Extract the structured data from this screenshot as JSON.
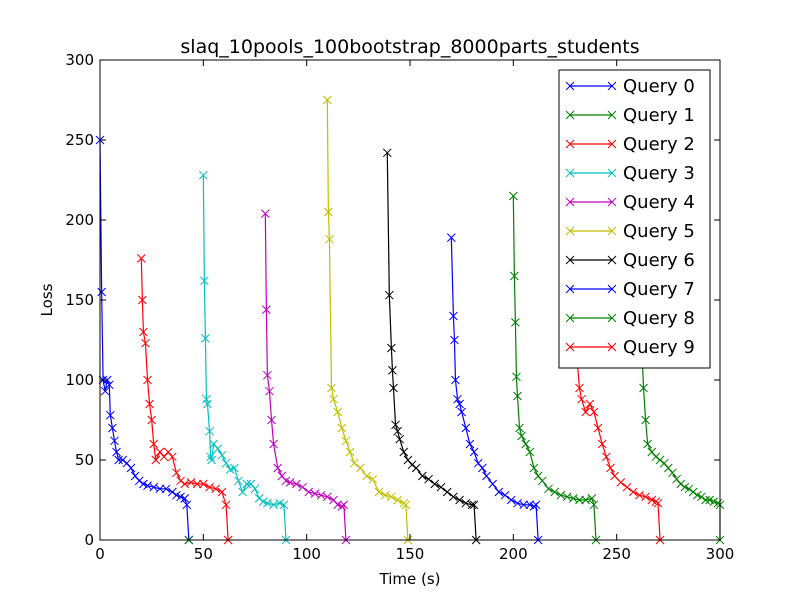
{
  "chart_data": {
    "type": "line",
    "title": "slaq_10pools_100bootstrap_8000parts_students",
    "xlabel": "Time (s)",
    "ylabel": "Loss",
    "xlim": [
      0,
      300
    ],
    "ylim": [
      0,
      300
    ],
    "xticks": [
      "0",
      "50",
      "100",
      "150",
      "200",
      "250",
      "300"
    ],
    "yticks": [
      "0",
      "50",
      "100",
      "150",
      "200",
      "250",
      "300"
    ],
    "grid": false,
    "legend_position": "top-right",
    "marker": "x",
    "series": [
      {
        "name": "Query 0",
        "color": "#0000ff",
        "points": [
          [
            0,
            250
          ],
          [
            0.8,
            155
          ],
          [
            1.5,
            100
          ],
          [
            2.5,
            93
          ],
          [
            3.5,
            100
          ],
          [
            4.5,
            97
          ],
          [
            5,
            78
          ],
          [
            6,
            70
          ],
          [
            7,
            62
          ],
          [
            8,
            55
          ],
          [
            9,
            50
          ],
          [
            11,
            50
          ],
          [
            13,
            48
          ],
          [
            15,
            45
          ],
          [
            17,
            40
          ],
          [
            19,
            37
          ],
          [
            21,
            35
          ],
          [
            23,
            34
          ],
          [
            26,
            33
          ],
          [
            29,
            32
          ],
          [
            32,
            32
          ],
          [
            35,
            30
          ],
          [
            37,
            28
          ],
          [
            39,
            27
          ],
          [
            41,
            26
          ],
          [
            42,
            22
          ],
          [
            43,
            0
          ]
        ]
      },
      {
        "name": "Query 1",
        "color": "#008000",
        "points": [
          [
            43,
            0
          ]
        ]
      },
      {
        "name": "Query 2",
        "color": "#ff0000",
        "points": [
          [
            20,
            176
          ],
          [
            20.5,
            150
          ],
          [
            21,
            130
          ],
          [
            22,
            123
          ],
          [
            23,
            100
          ],
          [
            24,
            85
          ],
          [
            25,
            75
          ],
          [
            26,
            60
          ],
          [
            27,
            50
          ],
          [
            29,
            55
          ],
          [
            31,
            52
          ],
          [
            33,
            55
          ],
          [
            35,
            52
          ],
          [
            37,
            42
          ],
          [
            39,
            37
          ],
          [
            41,
            35
          ],
          [
            44,
            36
          ],
          [
            47,
            35
          ],
          [
            50,
            35
          ],
          [
            53,
            33
          ],
          [
            56,
            32
          ],
          [
            59,
            30
          ],
          [
            61,
            22
          ],
          [
            62,
            0
          ]
        ]
      },
      {
        "name": "Query 3",
        "color": "#00bfbf",
        "points": [
          [
            50,
            228
          ],
          [
            50.5,
            162
          ],
          [
            51,
            126
          ],
          [
            51.5,
            88
          ],
          [
            52,
            85
          ],
          [
            53,
            68
          ],
          [
            53.5,
            52
          ],
          [
            54,
            50
          ],
          [
            55,
            60
          ],
          [
            57,
            57
          ],
          [
            59,
            53
          ],
          [
            61,
            48
          ],
          [
            63,
            44
          ],
          [
            65,
            45
          ],
          [
            67,
            37
          ],
          [
            69,
            30
          ],
          [
            71,
            35
          ],
          [
            73,
            35
          ],
          [
            75,
            32
          ],
          [
            77,
            26
          ],
          [
            79,
            24
          ],
          [
            81,
            23
          ],
          [
            84,
            22
          ],
          [
            87,
            23
          ],
          [
            89,
            22
          ],
          [
            90,
            0
          ]
        ]
      },
      {
        "name": "Query 4",
        "color": "#bf00bf",
        "points": [
          [
            80,
            204
          ],
          [
            80.5,
            144
          ],
          [
            81,
            103
          ],
          [
            82,
            93
          ],
          [
            83,
            75
          ],
          [
            84,
            60
          ],
          [
            86,
            45
          ],
          [
            88,
            40
          ],
          [
            90,
            37
          ],
          [
            92,
            36
          ],
          [
            95,
            35
          ],
          [
            98,
            33
          ],
          [
            101,
            30
          ],
          [
            104,
            29
          ],
          [
            107,
            28
          ],
          [
            110,
            27
          ],
          [
            113,
            25
          ],
          [
            115,
            22
          ],
          [
            117,
            21
          ],
          [
            118,
            22
          ],
          [
            119,
            0
          ]
        ]
      },
      {
        "name": "Query 5",
        "color": "#bfbf00",
        "points": [
          [
            110,
            275
          ],
          [
            110.5,
            205
          ],
          [
            111,
            188
          ],
          [
            112,
            95
          ],
          [
            113,
            88
          ],
          [
            115,
            80
          ],
          [
            117,
            70
          ],
          [
            119,
            62
          ],
          [
            121,
            55
          ],
          [
            123,
            48
          ],
          [
            126,
            45
          ],
          [
            129,
            40
          ],
          [
            132,
            38
          ],
          [
            135,
            30
          ],
          [
            138,
            28
          ],
          [
            141,
            27
          ],
          [
            144,
            25
          ],
          [
            147,
            23
          ],
          [
            148,
            22
          ],
          [
            149,
            0
          ]
        ]
      },
      {
        "name": "Query 6",
        "color": "#000000",
        "points": [
          [
            139,
            242
          ],
          [
            140,
            153
          ],
          [
            141,
            120
          ],
          [
            141.5,
            106
          ],
          [
            142,
            95
          ],
          [
            143,
            72
          ],
          [
            144,
            68
          ],
          [
            145,
            63
          ],
          [
            147,
            55
          ],
          [
            149,
            50
          ],
          [
            151,
            47
          ],
          [
            153,
            45
          ],
          [
            156,
            40
          ],
          [
            159,
            38
          ],
          [
            162,
            35
          ],
          [
            165,
            33
          ],
          [
            168,
            30
          ],
          [
            171,
            27
          ],
          [
            174,
            25
          ],
          [
            177,
            23
          ],
          [
            180,
            22
          ],
          [
            181,
            22
          ],
          [
            182,
            0
          ]
        ]
      },
      {
        "name": "Query 7",
        "color": "#0000ff",
        "points": [
          [
            170,
            189
          ],
          [
            171,
            140
          ],
          [
            171.5,
            125
          ],
          [
            172,
            100
          ],
          [
            173,
            88
          ],
          [
            174,
            85
          ],
          [
            175,
            80
          ],
          [
            177,
            70
          ],
          [
            179,
            60
          ],
          [
            181,
            55
          ],
          [
            183,
            48
          ],
          [
            185,
            45
          ],
          [
            187,
            40
          ],
          [
            190,
            35
          ],
          [
            193,
            30
          ],
          [
            196,
            28
          ],
          [
            199,
            25
          ],
          [
            202,
            23
          ],
          [
            205,
            22
          ],
          [
            208,
            22
          ],
          [
            210,
            21
          ],
          [
            211,
            22
          ],
          [
            212,
            0
          ]
        ]
      },
      {
        "name": "Query 8",
        "color": "#008000",
        "points": [
          [
            200,
            215
          ],
          [
            200.5,
            165
          ],
          [
            201,
            136
          ],
          [
            201.5,
            102
          ],
          [
            202,
            90
          ],
          [
            203,
            70
          ],
          [
            204,
            65
          ],
          [
            206,
            60
          ],
          [
            208,
            55
          ],
          [
            210,
            45
          ],
          [
            212,
            40
          ],
          [
            214,
            37
          ],
          [
            217,
            32
          ],
          [
            220,
            30
          ],
          [
            223,
            28
          ],
          [
            226,
            27
          ],
          [
            229,
            26
          ],
          [
            232,
            25
          ],
          [
            235,
            25
          ],
          [
            238,
            26
          ],
          [
            239,
            22
          ],
          [
            240,
            0
          ]
        ]
      },
      {
        "name": "Query 9",
        "color": "#ff0000",
        "points": [
          [
            230,
            120
          ],
          [
            231,
            110
          ],
          [
            232,
            95
          ],
          [
            233,
            88
          ],
          [
            235,
            80
          ],
          [
            237,
            85
          ],
          [
            239,
            80
          ],
          [
            241,
            70
          ],
          [
            243,
            60
          ],
          [
            245,
            52
          ],
          [
            247,
            45
          ],
          [
            249,
            40
          ],
          [
            252,
            36
          ],
          [
            255,
            33
          ],
          [
            258,
            30
          ],
          [
            261,
            28
          ],
          [
            264,
            27
          ],
          [
            267,
            25
          ],
          [
            269,
            24
          ],
          [
            270,
            23
          ],
          [
            271,
            0
          ]
        ]
      },
      {
        "name": "Query 0",
        "color": "#008000",
        "legend": false,
        "points": [
          [
            262,
            130
          ],
          [
            262.5,
            110
          ],
          [
            263,
            95
          ],
          [
            264,
            75
          ],
          [
            265,
            60
          ],
          [
            267,
            55
          ],
          [
            269,
            52
          ],
          [
            271,
            50
          ],
          [
            273,
            48
          ],
          [
            275,
            45
          ],
          [
            277,
            42
          ],
          [
            279,
            38
          ],
          [
            281,
            35
          ],
          [
            283,
            33
          ],
          [
            285,
            32
          ],
          [
            287,
            30
          ],
          [
            289,
            28
          ],
          [
            291,
            27
          ],
          [
            293,
            25
          ],
          [
            295,
            25
          ],
          [
            297,
            24
          ],
          [
            299,
            23
          ],
          [
            300,
            22
          ],
          [
            300,
            0
          ]
        ]
      }
    ]
  }
}
